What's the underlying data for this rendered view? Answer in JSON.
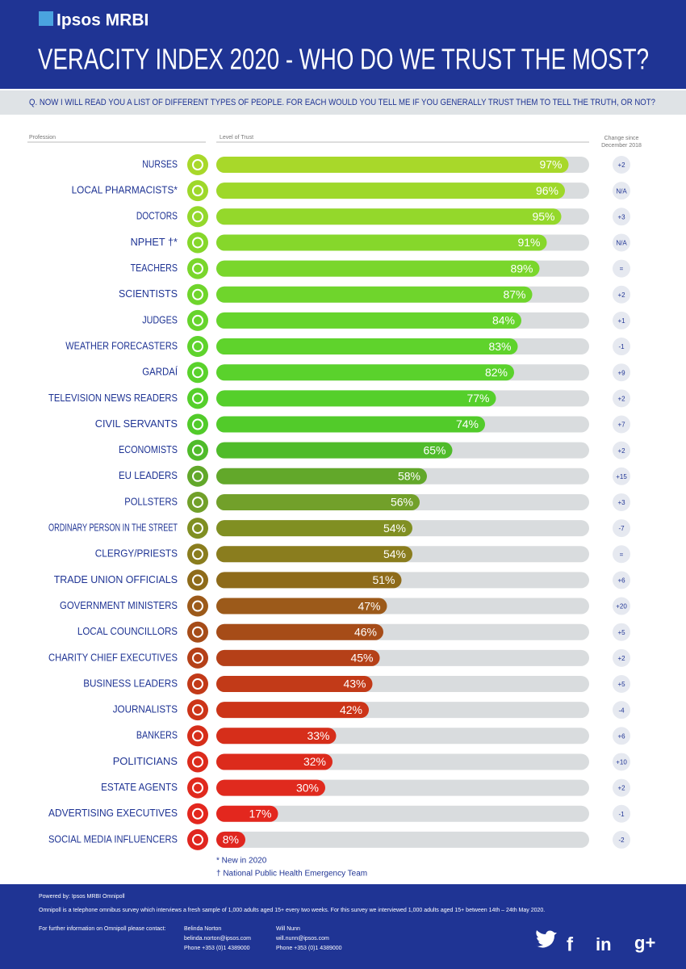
{
  "header": {
    "logo": "Ipsos MRBI",
    "title": "VERACITY INDEX 2020 - WHO DO WE TRUST THE MOST?",
    "question": "Q. NOW I WILL READ YOU A LIST OF DIFFERENT TYPES OF PEOPLE. FOR EACH WOULD YOU TELL ME IF YOU GENERALLY TRUST THEM TO TELL THE TRUTH, OR NOT?"
  },
  "chart_data": {
    "type": "hbar",
    "category_header": "Profession",
    "value_header": "Level of Trust",
    "change_header": [
      "Change since",
      "December 2018"
    ],
    "categories": [
      "NURSES",
      "LOCAL PHARMACISTS*",
      "DOCTORS",
      "NPHET †*",
      "TEACHERS",
      "SCIENTISTS",
      "JUDGES",
      "WEATHER FORECASTERS",
      "GARDAÍ",
      "TELEVISION NEWS READERS",
      "CIVIL SERVANTS",
      "ECONOMISTS",
      "EU LEADERS",
      "POLLSTERS",
      "ORDINARY PERSON IN THE STREET",
      "CLERGY/PRIESTS",
      "TRADE UNION OFFICIALS",
      "GOVERNMENT MINISTERS",
      "LOCAL COUNCILLORS",
      "CHARITY CHIEF EXECUTIVES",
      "BUSINESS LEADERS",
      "JOURNALISTS",
      "BANKERS",
      "POLITICIANS",
      "ESTATE AGENTS",
      "ADVERTISING EXECUTIVES",
      "SOCIAL MEDIA INFLUENCERS"
    ],
    "values": [
      97,
      96,
      95,
      91,
      89,
      87,
      84,
      83,
      82,
      77,
      74,
      65,
      58,
      56,
      54,
      54,
      51,
      47,
      46,
      45,
      43,
      42,
      33,
      32,
      30,
      17,
      8
    ],
    "value_labels": [
      "97%",
      "96%",
      "95%",
      "91%",
      "89%",
      "87%",
      "84%",
      "83%",
      "82%",
      "77%",
      "74%",
      "65%",
      "58%",
      "56%",
      "54%",
      "54%",
      "51%",
      "47%",
      "46%",
      "45%",
      "43%",
      "42%",
      "33%",
      "32%",
      "30%",
      "17%",
      "8%"
    ],
    "change_labels": [
      "+2",
      "N/A",
      "+3",
      "N/A",
      "=",
      "+2",
      "+1",
      "-1",
      "+9",
      "+2",
      "+7",
      "+2",
      "+15",
      "+3",
      "-7",
      "=",
      "+6",
      "+20",
      "+5",
      "+2",
      "+5",
      "-4",
      "+6",
      "+10",
      "+2",
      "-1",
      "-2"
    ],
    "colors": [
      "#a8d82a",
      "#9ed82a",
      "#94d82b",
      "#86d72b",
      "#7ad62c",
      "#6fd52c",
      "#66d42c",
      "#5fd32c",
      "#5ad22c",
      "#55cf2b",
      "#52cb2a",
      "#4fbb2a",
      "#62a82a",
      "#72a02a",
      "#808f22",
      "#8a7d1e",
      "#8e6b1a",
      "#9c5a1a",
      "#a64c18",
      "#b54018",
      "#c23a18",
      "#cc3418",
      "#d62e1a",
      "#dc2b1c",
      "#e02a1e",
      "#e3271e",
      "#e0261f"
    ],
    "xlim": [
      0,
      100
    ],
    "notes": [
      "* New in 2020",
      "† National Public Health Emergency Team"
    ]
  },
  "footer": {
    "powered": "Powered by: Ipsos MRBI Omnipoll",
    "description": "Omnipoll is a telephone omnibus survey which interviews a fresh sample of 1,000 adults aged 15+ every two weeks.  For this survey we interviewed 1,000 adults aged 15+ between 14th – 24th May 2020.",
    "contact_intro": "For further information on Omnipoll please contact:",
    "contacts": [
      {
        "name": "Belinda Norton",
        "email": "belinda.norton@ipsos.com",
        "phone": "Phone +353 (0)1 4389000"
      },
      {
        "name": "Will Nunn",
        "email": "will.nunn@ipsos.com",
        "phone": "Phone +353 (0)1 4389000"
      }
    ],
    "social": [
      "f",
      "in",
      "g+"
    ]
  }
}
